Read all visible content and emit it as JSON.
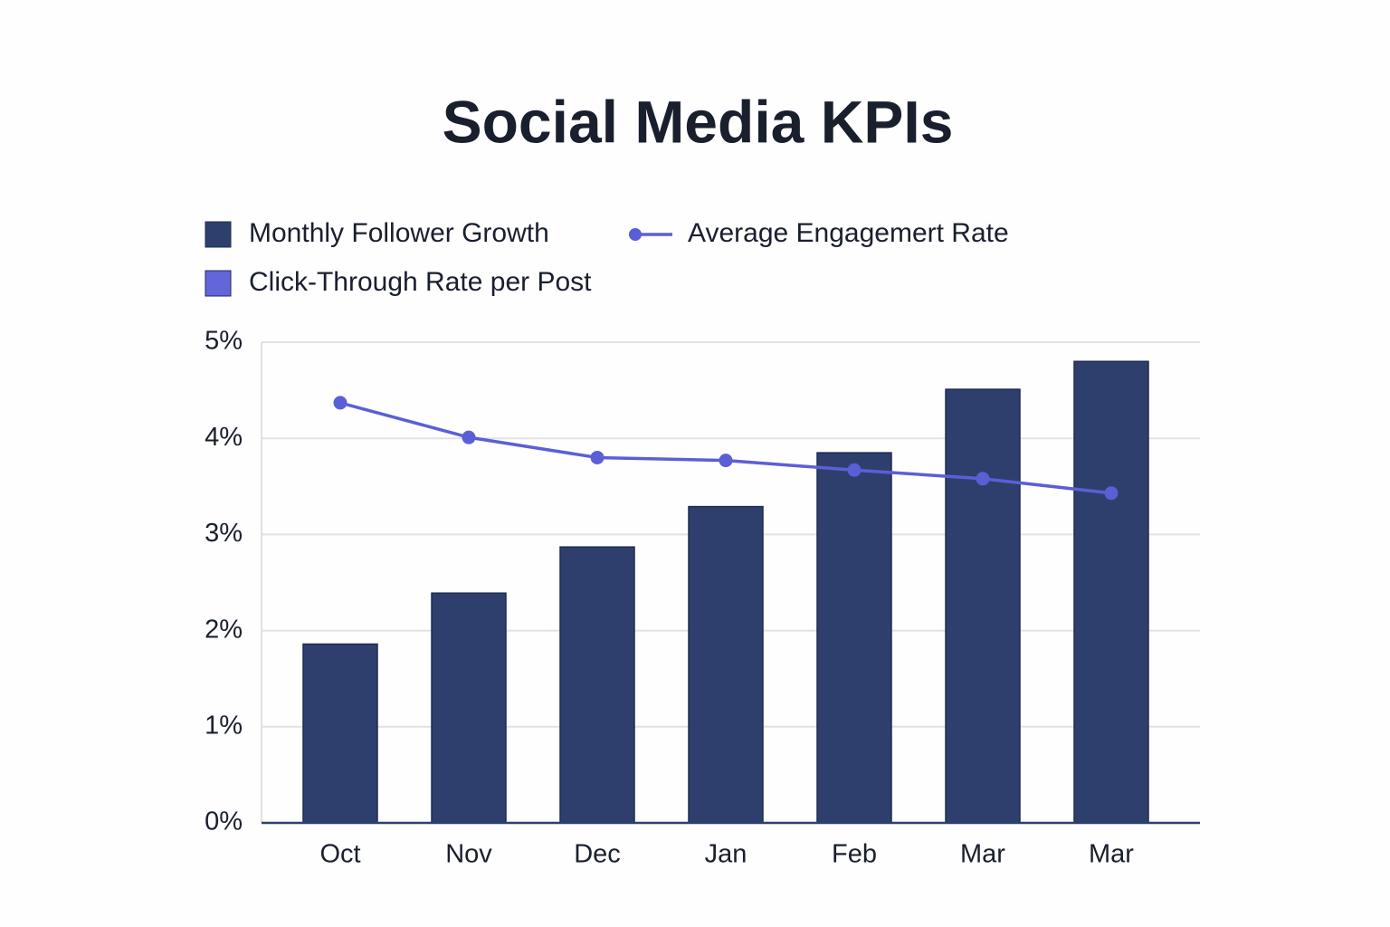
{
  "chart_data": {
    "type": "bar",
    "title": "Social Media KPIs",
    "categories": [
      "Oct",
      "Nov",
      "Dec",
      "Jan",
      "Feb",
      "Mar",
      "Mar"
    ],
    "series": [
      {
        "name": "Monthly Follower Growth",
        "type": "bar",
        "color": "#2f3f6d",
        "values": [
          1.86,
          2.39,
          2.87,
          3.29,
          3.85,
          4.51,
          4.8
        ]
      },
      {
        "name": "Average Engagemert Rate",
        "type": "line",
        "color": "#5b5fd6",
        "values": [
          4.37,
          4.01,
          3.8,
          3.77,
          3.67,
          3.58,
          3.43
        ]
      },
      {
        "name": "Click-Through Rate per Post",
        "type": "bar",
        "color": "#6366d9",
        "values": [
          null,
          null,
          null,
          null,
          null,
          null,
          null
        ]
      }
    ],
    "ylim": [
      0,
      5
    ],
    "yticks": [
      {
        "value": 0,
        "label": "0%"
      },
      {
        "value": 1,
        "label": "1%"
      },
      {
        "value": 2,
        "label": "2%"
      },
      {
        "value": 3,
        "label": "3%"
      },
      {
        "value": 4,
        "label": "4%"
      },
      {
        "value": 5,
        "label": "5%"
      }
    ],
    "grid": true
  }
}
